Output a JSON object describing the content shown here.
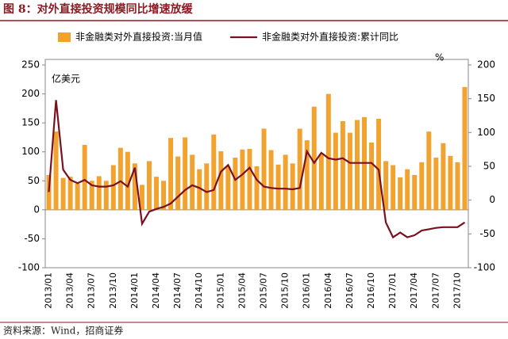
{
  "chart_data": {
    "type": "bar",
    "title": "图 8：对外直接投资规模同比增速放缓",
    "source": "资料来源：Wind，招商证券",
    "y_unit": "亿美元",
    "y2_unit": "%",
    "categories": [
      "2013/01",
      null,
      null,
      "2013/04",
      null,
      null,
      "2013/07",
      null,
      null,
      "2013/10",
      null,
      null,
      "2014/01",
      null,
      null,
      "2014/04",
      null,
      null,
      "2014/07",
      null,
      null,
      "2014/10",
      null,
      null,
      "2015/01",
      null,
      null,
      "2015/04",
      null,
      null,
      "2015/07",
      null,
      null,
      "2015/10",
      null,
      null,
      "2016/01",
      null,
      null,
      "2016/04",
      null,
      null,
      "2016/07",
      null,
      null,
      "2016/10",
      null,
      null,
      "2017/01",
      null,
      null,
      "2017/04",
      null,
      null,
      "2017/07",
      null,
      null,
      "2017/10",
      null
    ],
    "series": [
      {
        "name": "非金融类对外直接投资:当月值",
        "type": "bar",
        "color": "#f2a22e",
        "axis": "y",
        "values": [
          60,
          135,
          55,
          57,
          45,
          112,
          50,
          58,
          50,
          77,
          107,
          100,
          80,
          43,
          84,
          57,
          50,
          124,
          92,
          125,
          95,
          70,
          80,
          130,
          101,
          75,
          90,
          104,
          105,
          75,
          140,
          103,
          78,
          95,
          80,
          140,
          120,
          178,
          96,
          200,
          133,
          153,
          133,
          155,
          160,
          116,
          157,
          84,
          77,
          56,
          70,
          60,
          82,
          135,
          90,
          115,
          93,
          82,
          212
        ]
      },
      {
        "name": "非金融类对外直接投资:累计同比",
        "type": "line",
        "color": "#7a1020",
        "axis": "y2",
        "values": [
          12,
          148,
          45,
          30,
          25,
          30,
          22,
          20,
          20,
          22,
          28,
          20,
          48,
          -35,
          -17,
          -13,
          -10,
          -5,
          5,
          15,
          22,
          18,
          12,
          15,
          42,
          52,
          30,
          38,
          48,
          30,
          20,
          18,
          17,
          17,
          16,
          18,
          72,
          55,
          70,
          62,
          60,
          62,
          55,
          55,
          55,
          55,
          45,
          -33,
          -55,
          -48,
          -55,
          -52,
          -45,
          -43,
          -41,
          -40,
          -40,
          -40,
          -33
        ]
      }
    ],
    "ylim": [
      -100,
      250
    ],
    "yticks": [
      -100,
      -50,
      0,
      50,
      100,
      150,
      200,
      250
    ],
    "y2lim": [
      -100,
      200
    ],
    "y2ticks": [
      -100,
      -50,
      0,
      50,
      100,
      150,
      200
    ]
  }
}
